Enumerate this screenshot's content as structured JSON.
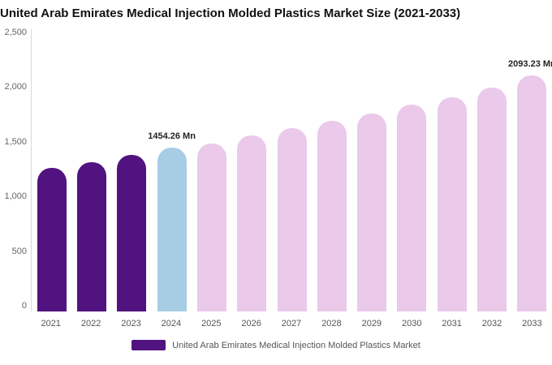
{
  "title": "United Arab Emirates Medical Injection Molded Plastics Market Size (2021-2033)",
  "legend": {
    "label": "United Arab Emirates Medical Injection Molded Plastics Market",
    "swatch_color": "#511380"
  },
  "colors": {
    "historical": "#511380",
    "current": "#a7cde4",
    "forecast": "#eac9ea"
  },
  "chart_data": {
    "type": "bar",
    "title": "United Arab Emirates Medical Injection Molded Plastics Market Size (2021-2033)",
    "xlabel": "",
    "ylabel": "",
    "ylim": [
      0,
      2500
    ],
    "yticks_labels": [
      "2,500",
      "2,000",
      "1,500",
      "1,000",
      "500",
      "0"
    ],
    "grid": false,
    "legend_position": "bottom",
    "categories": [
      "2021",
      "2022",
      "2023",
      "2024",
      "2025",
      "2026",
      "2027",
      "2028",
      "2029",
      "2030",
      "2031",
      "2032",
      "2033"
    ],
    "values": [
      1270,
      1320,
      1385,
      1454.26,
      1490,
      1560,
      1625,
      1690,
      1755,
      1830,
      1900,
      1985,
      2093.23
    ],
    "bar_colors": [
      "#511380",
      "#511380",
      "#511380",
      "#a7cde4",
      "#eac9ea",
      "#eac9ea",
      "#eac9ea",
      "#eac9ea",
      "#eac9ea",
      "#eac9ea",
      "#eac9ea",
      "#eac9ea",
      "#eac9ea"
    ],
    "annotations": [
      {
        "category": "2024",
        "text": "1454.26 Mn"
      },
      {
        "category": "2033",
        "text": "2093.23 Mn"
      }
    ]
  }
}
